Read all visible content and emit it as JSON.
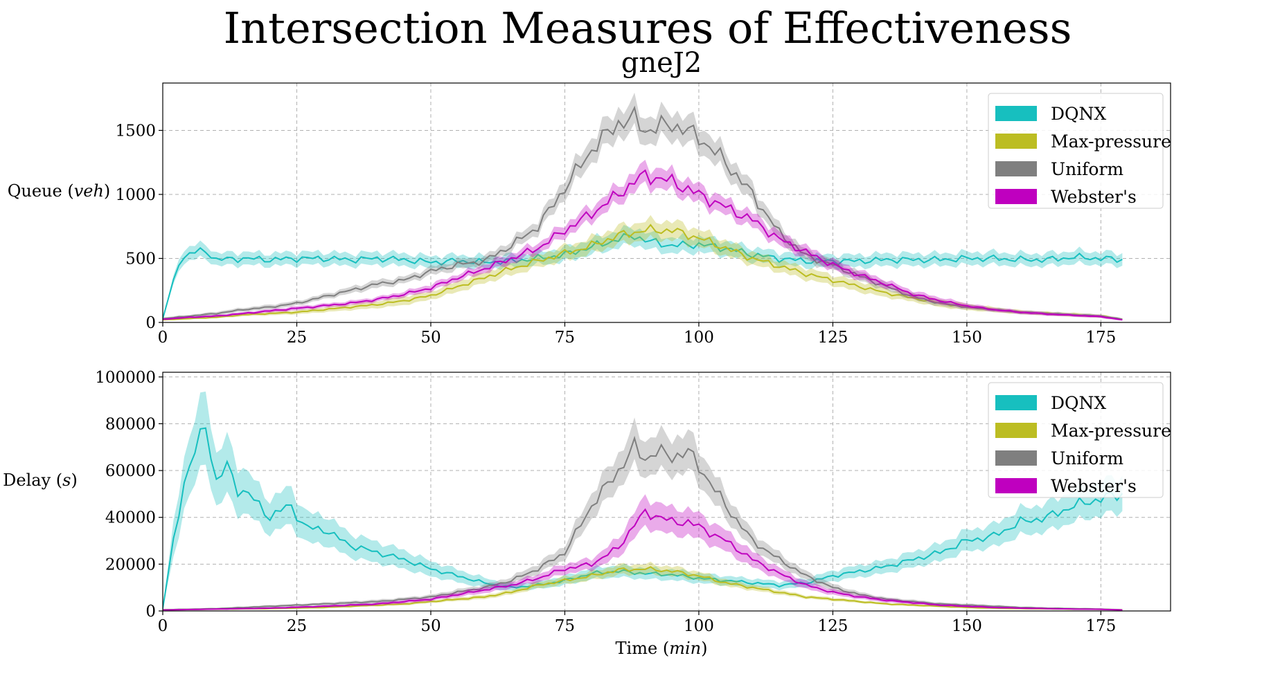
{
  "figure": {
    "suptitle": "Intersection Measures of Effectiveness",
    "subtitle": "gneJ2",
    "xlabel_main": "Time",
    "xlabel_unit": "min"
  },
  "colors": {
    "DQNX": "#17bfbf",
    "Max-pressure": "#bcbd22",
    "Uniform": "#7f7f7f",
    "Webster's": "#bf00bf"
  },
  "chart_data": [
    {
      "type": "line",
      "id": "queue",
      "ylabel_main": "Queue",
      "ylabel_unit": "veh",
      "xlim": [
        0,
        188
      ],
      "ylim": [
        0,
        1870
      ],
      "xticks": [
        0,
        25,
        50,
        75,
        100,
        125,
        150,
        175
      ],
      "yticks": [
        0,
        500,
        1000,
        1500
      ],
      "grid": true,
      "legend": "top-right",
      "legend_entries": [
        "DQNX",
        "Max-pressure",
        "Uniform",
        "Webster's"
      ],
      "series": [
        {
          "name": "DQNX",
          "x": [
            0,
            3,
            5,
            8,
            10,
            15,
            20,
            25,
            30,
            35,
            40,
            45,
            50,
            55,
            60,
            65,
            70,
            75,
            80,
            85,
            88,
            90,
            95,
            100,
            105,
            110,
            115,
            120,
            125,
            130,
            135,
            140,
            145,
            150,
            155,
            160,
            165,
            170,
            175,
            179
          ],
          "y": [
            30,
            470,
            540,
            560,
            490,
            500,
            490,
            500,
            500,
            490,
            500,
            490,
            470,
            480,
            470,
            480,
            500,
            530,
            590,
            650,
            680,
            640,
            600,
            610,
            580,
            530,
            500,
            480,
            480,
            480,
            490,
            490,
            490,
            500,
            500,
            490,
            490,
            510,
            500,
            490
          ],
          "spread": [
            0.1,
            0.1,
            0.1,
            0.1,
            0.1,
            0.1,
            0.1,
            0.1,
            0.1,
            0.1,
            0.1,
            0.1,
            0.1,
            0.1,
            0.1,
            0.1,
            0.1,
            0.1,
            0.1,
            0.1,
            0.1,
            0.1,
            0.1,
            0.1,
            0.1,
            0.1,
            0.1,
            0.1,
            0.1,
            0.1,
            0.1,
            0.1,
            0.1,
            0.1,
            0.1,
            0.1,
            0.1,
            0.1,
            0.1,
            0.1
          ]
        },
        {
          "name": "Max-pressure",
          "x": [
            0,
            5,
            10,
            15,
            20,
            25,
            30,
            35,
            40,
            45,
            50,
            55,
            60,
            65,
            70,
            75,
            80,
            85,
            90,
            95,
            100,
            105,
            110,
            115,
            120,
            125,
            130,
            135,
            140,
            145,
            150,
            155,
            160,
            165,
            170,
            175,
            179
          ],
          "y": [
            20,
            30,
            40,
            60,
            70,
            80,
            100,
            120,
            140,
            170,
            210,
            280,
            350,
            420,
            480,
            540,
            600,
            680,
            720,
            720,
            660,
            580,
            500,
            440,
            380,
            330,
            280,
            230,
            190,
            150,
            120,
            100,
            80,
            70,
            60,
            50,
            25
          ],
          "spread": [
            0.3,
            0.2,
            0.2,
            0.2,
            0.2,
            0.2,
            0.2,
            0.2,
            0.2,
            0.2,
            0.15,
            0.15,
            0.12,
            0.12,
            0.1,
            0.1,
            0.1,
            0.1,
            0.1,
            0.1,
            0.1,
            0.1,
            0.1,
            0.1,
            0.12,
            0.12,
            0.15,
            0.15,
            0.15,
            0.2,
            0.2,
            0.2,
            0.2,
            0.2,
            0.25,
            0.25,
            0.3
          ]
        },
        {
          "name": "Uniform",
          "x": [
            0,
            5,
            10,
            15,
            20,
            25,
            30,
            35,
            40,
            45,
            50,
            55,
            60,
            65,
            70,
            75,
            80,
            85,
            88,
            90,
            95,
            100,
            105,
            110,
            115,
            120,
            125,
            130,
            135,
            140,
            145,
            150,
            155,
            160,
            165,
            170,
            175,
            179
          ],
          "y": [
            30,
            50,
            70,
            100,
            120,
            150,
            200,
            250,
            300,
            330,
            400,
            450,
            480,
            600,
            750,
            1050,
            1350,
            1560,
            1590,
            1500,
            1550,
            1450,
            1250,
            1000,
            700,
            520,
            450,
            360,
            280,
            200,
            150,
            120,
            100,
            80,
            70,
            60,
            50,
            25
          ],
          "spread": [
            0.3,
            0.2,
            0.2,
            0.15,
            0.15,
            0.12,
            0.1,
            0.1,
            0.1,
            0.08,
            0.08,
            0.08,
            0.07,
            0.07,
            0.07,
            0.07,
            0.07,
            0.07,
            0.07,
            0.07,
            0.07,
            0.07,
            0.07,
            0.07,
            0.08,
            0.08,
            0.09,
            0.1,
            0.1,
            0.12,
            0.15,
            0.15,
            0.15,
            0.18,
            0.2,
            0.2,
            0.25,
            0.3
          ]
        },
        {
          "name": "Webster's",
          "x": [
            0,
            5,
            10,
            15,
            20,
            25,
            30,
            35,
            40,
            45,
            50,
            55,
            60,
            65,
            70,
            75,
            80,
            85,
            88,
            90,
            95,
            100,
            105,
            110,
            115,
            120,
            125,
            130,
            135,
            140,
            145,
            150,
            155,
            160,
            165,
            170,
            175,
            179
          ],
          "y": [
            25,
            40,
            50,
            70,
            90,
            110,
            130,
            150,
            180,
            220,
            270,
            350,
            420,
            500,
            580,
            720,
            850,
            1000,
            1100,
            1150,
            1100,
            1000,
            900,
            800,
            650,
            550,
            450,
            370,
            300,
            220,
            170,
            130,
            100,
            80,
            65,
            55,
            45,
            20
          ],
          "spread": [
            0.3,
            0.2,
            0.2,
            0.15,
            0.15,
            0.15,
            0.12,
            0.12,
            0.1,
            0.1,
            0.1,
            0.08,
            0.08,
            0.08,
            0.07,
            0.07,
            0.07,
            0.07,
            0.07,
            0.07,
            0.07,
            0.07,
            0.07,
            0.07,
            0.08,
            0.08,
            0.09,
            0.1,
            0.1,
            0.12,
            0.15,
            0.15,
            0.15,
            0.18,
            0.2,
            0.2,
            0.25,
            0.3
          ]
        }
      ]
    },
    {
      "type": "line",
      "id": "delay",
      "ylabel_main": "Delay",
      "ylabel_unit": "s",
      "xlim": [
        0,
        188
      ],
      "ylim": [
        0,
        102000
      ],
      "xticks": [
        0,
        25,
        50,
        75,
        100,
        125,
        150,
        175
      ],
      "yticks": [
        0,
        20000,
        40000,
        60000,
        80000,
        100000
      ],
      "grid": true,
      "legend": "top-right",
      "legend_entries": [
        "DQNX",
        "Max-pressure",
        "Uniform",
        "Webster's"
      ],
      "series": [
        {
          "name": "DQNX",
          "x": [
            0,
            2,
            4,
            6,
            8,
            10,
            12,
            14,
            16,
            18,
            20,
            22,
            24,
            26,
            28,
            30,
            35,
            40,
            45,
            50,
            55,
            60,
            65,
            70,
            75,
            80,
            85,
            90,
            95,
            100,
            105,
            110,
            115,
            120,
            125,
            130,
            135,
            140,
            145,
            150,
            155,
            160,
            165,
            170,
            175,
            179
          ],
          "y": [
            1000,
            30000,
            55000,
            68000,
            80000,
            55000,
            62000,
            52000,
            50000,
            45000,
            40000,
            43000,
            45000,
            37000,
            35000,
            35000,
            28000,
            25000,
            22000,
            18000,
            15000,
            12000,
            10000,
            11000,
            13000,
            16000,
            17000,
            16000,
            15500,
            14000,
            13000,
            12000,
            11000,
            12000,
            15000,
            17000,
            19000,
            22000,
            25000,
            30000,
            32000,
            38000,
            40000,
            45000,
            48000,
            50000
          ],
          "spread": [
            0.2,
            0.25,
            0.2,
            0.2,
            0.2,
            0.2,
            0.2,
            0.2,
            0.18,
            0.18,
            0.18,
            0.18,
            0.18,
            0.18,
            0.18,
            0.18,
            0.18,
            0.18,
            0.18,
            0.18,
            0.18,
            0.18,
            0.15,
            0.15,
            0.15,
            0.15,
            0.15,
            0.15,
            0.15,
            0.15,
            0.15,
            0.15,
            0.15,
            0.15,
            0.15,
            0.15,
            0.15,
            0.15,
            0.15,
            0.15,
            0.15,
            0.15,
            0.15,
            0.15,
            0.15,
            0.15
          ]
        },
        {
          "name": "Max-pressure",
          "x": [
            0,
            10,
            20,
            30,
            40,
            45,
            50,
            55,
            60,
            65,
            70,
            75,
            80,
            85,
            90,
            95,
            100,
            105,
            110,
            115,
            120,
            125,
            130,
            135,
            140,
            145,
            150,
            155,
            160,
            165,
            170,
            175,
            179
          ],
          "y": [
            500,
            800,
            1000,
            1500,
            2500,
            3000,
            4000,
            5000,
            6000,
            8000,
            11000,
            13000,
            15000,
            17500,
            18000,
            17000,
            15000,
            12000,
            10000,
            8000,
            6000,
            5000,
            4000,
            3000,
            2500,
            2000,
            1500,
            1200,
            1000,
            900,
            800,
            700,
            500
          ],
          "spread": [
            0.5,
            0.4,
            0.3,
            0.25,
            0.2,
            0.2,
            0.15,
            0.15,
            0.15,
            0.12,
            0.12,
            0.12,
            0.12,
            0.12,
            0.12,
            0.12,
            0.12,
            0.12,
            0.12,
            0.12,
            0.12,
            0.15,
            0.15,
            0.15,
            0.2,
            0.2,
            0.25,
            0.3,
            0.3,
            0.3,
            0.35,
            0.4,
            0.5
          ]
        },
        {
          "name": "Uniform",
          "x": [
            0,
            10,
            20,
            25,
            30,
            35,
            40,
            45,
            50,
            55,
            60,
            65,
            70,
            75,
            80,
            85,
            88,
            90,
            92,
            95,
            98,
            100,
            105,
            110,
            115,
            120,
            125,
            130,
            135,
            140,
            145,
            150,
            155,
            160,
            165,
            170,
            175,
            179
          ],
          "y": [
            500,
            1000,
            2000,
            2500,
            3000,
            3500,
            4000,
            5000,
            6000,
            8000,
            10000,
            13000,
            18000,
            25000,
            45000,
            60000,
            70000,
            65000,
            68000,
            66000,
            68000,
            62000,
            45000,
            30000,
            22000,
            15000,
            10000,
            7000,
            5000,
            4000,
            3000,
            2500,
            2000,
            1500,
            1200,
            1000,
            800,
            500
          ],
          "spread": [
            0.5,
            0.3,
            0.25,
            0.2,
            0.2,
            0.2,
            0.2,
            0.15,
            0.15,
            0.15,
            0.12,
            0.12,
            0.12,
            0.12,
            0.12,
            0.12,
            0.12,
            0.12,
            0.12,
            0.12,
            0.12,
            0.12,
            0.12,
            0.12,
            0.12,
            0.12,
            0.15,
            0.15,
            0.15,
            0.2,
            0.2,
            0.25,
            0.3,
            0.3,
            0.3,
            0.35,
            0.4,
            0.5
          ]
        },
        {
          "name": "Webster's",
          "x": [
            0,
            10,
            20,
            30,
            40,
            45,
            50,
            55,
            60,
            65,
            70,
            75,
            80,
            85,
            88,
            90,
            93,
            95,
            98,
            100,
            105,
            110,
            115,
            120,
            125,
            130,
            135,
            140,
            145,
            150,
            155,
            160,
            165,
            170,
            175,
            179
          ],
          "y": [
            400,
            800,
            1200,
            2000,
            3000,
            4000,
            5000,
            7000,
            9000,
            11000,
            14000,
            18000,
            20000,
            27000,
            37000,
            42000,
            40000,
            38000,
            38000,
            36000,
            30000,
            22000,
            16000,
            11000,
            8000,
            6000,
            4500,
            3500,
            2500,
            2000,
            1500,
            1200,
            1000,
            800,
            700,
            400
          ],
          "spread": [
            0.5,
            0.4,
            0.3,
            0.25,
            0.2,
            0.2,
            0.15,
            0.15,
            0.15,
            0.12,
            0.12,
            0.12,
            0.12,
            0.15,
            0.15,
            0.15,
            0.15,
            0.15,
            0.15,
            0.15,
            0.15,
            0.15,
            0.15,
            0.15,
            0.15,
            0.15,
            0.2,
            0.2,
            0.2,
            0.25,
            0.3,
            0.3,
            0.3,
            0.35,
            0.4,
            0.5
          ]
        }
      ]
    }
  ]
}
